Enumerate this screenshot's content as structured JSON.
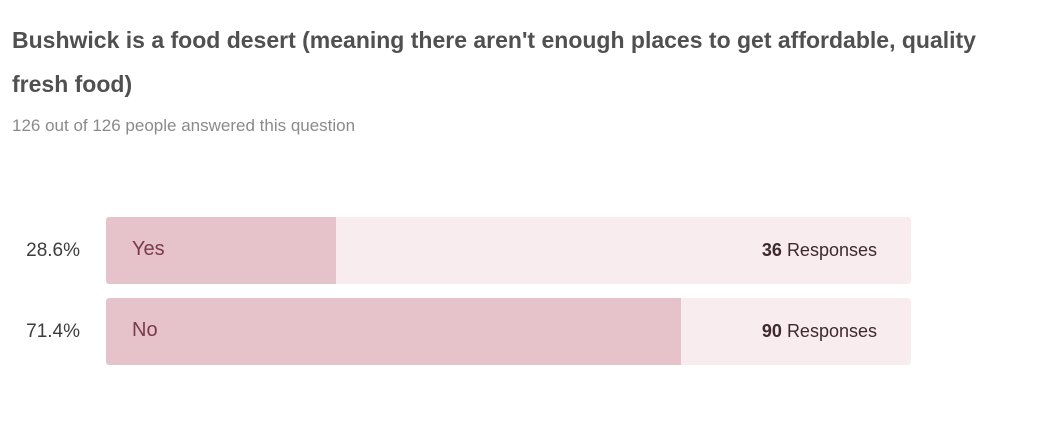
{
  "question": {
    "title": "Bushwick is a food desert (meaning there aren't enough places to get affordable, quality fresh food)",
    "answered": "126 out of 126 people answered this question"
  },
  "colors": {
    "track": "#f8ecee",
    "fill": "#e6c3ca",
    "label": "#7a3a4a"
  },
  "chart_data": {
    "type": "bar",
    "orientation": "horizontal",
    "categories": [
      "Yes",
      "No"
    ],
    "values": [
      36,
      90
    ],
    "percent_values": [
      28.6,
      71.4
    ],
    "percents": [
      "28.6%",
      "71.4%"
    ],
    "response_suffix": "Responses",
    "total": 126
  }
}
